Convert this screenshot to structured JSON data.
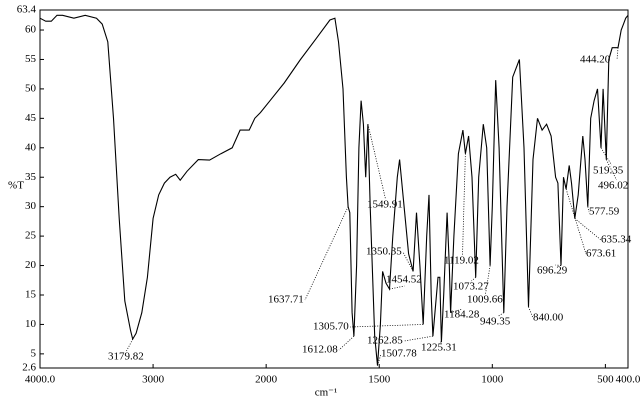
{
  "chart_data": {
    "type": "line",
    "color": "#000000",
    "ylabel": "%T",
    "xlabel": "cm⁻¹",
    "xlim": [
      4000,
      400
    ],
    "ylim": [
      2.6,
      63.4
    ],
    "x_scale": {
      "type": "split",
      "break": 2000,
      "expansion": 2
    },
    "xticks": [
      {
        "value": 4000,
        "label": "4000.0"
      },
      3000,
      2000,
      1500,
      1000,
      500,
      {
        "value": 400,
        "label": "400.0"
      }
    ],
    "yticks": [
      2.6,
      5,
      10,
      15,
      20,
      25,
      30,
      35,
      40,
      45,
      50,
      55,
      60,
      63.4
    ],
    "x": [
      4000,
      3950,
      3900,
      3850,
      3800,
      3700,
      3600,
      3500,
      3450,
      3400,
      3350,
      3300,
      3250,
      3200,
      3180,
      3150,
      3100,
      3050,
      3000,
      2950,
      2900,
      2850,
      2800,
      2760,
      2700,
      2600,
      2500,
      2400,
      2300,
      2230,
      2150,
      2100,
      2050,
      1983,
      1920,
      1850,
      1780,
      1718,
      1696,
      1680,
      1660,
      1645,
      1637.71,
      1630,
      1620,
      1612.08,
      1600,
      1590,
      1580,
      1570,
      1560,
      1549.91,
      1540,
      1520,
      1507.78,
      1495,
      1485,
      1470,
      1454.52,
      1440,
      1420,
      1410,
      1390,
      1370,
      1350.35,
      1335,
      1320,
      1305.7,
      1290,
      1280,
      1270,
      1262.85,
      1240,
      1232,
      1225.31,
      1215,
      1200,
      1190,
      1184.28,
      1170,
      1150,
      1130,
      1119.02,
      1105,
      1090,
      1073.27,
      1060,
      1040,
      1025,
      1009.66,
      1000,
      985,
      970,
      949.35,
      935,
      910,
      880,
      860,
      840,
      820,
      800,
      780,
      760,
      740,
      720,
      710,
      696.29,
      685,
      673.61,
      660,
      650,
      635.34,
      620,
      600,
      590,
      577.59,
      565,
      550,
      535,
      519.35,
      510,
      496.02,
      485,
      470,
      444.2,
      430,
      420,
      410,
      400
    ],
    "values": [
      62,
      61.5,
      61.5,
      62.5,
      62.5,
      62,
      62.5,
      62,
      61,
      58,
      45,
      28,
      14,
      9,
      7.5,
      8.5,
      12,
      18,
      28,
      32,
      34,
      35,
      35.5,
      34.5,
      36,
      38,
      37.9,
      39,
      40,
      43,
      43,
      45,
      46,
      48,
      51,
      54.9,
      58.5,
      61.7,
      62,
      58,
      50,
      35,
      30,
      29,
      12,
      8,
      20,
      40,
      48,
      44,
      35,
      44,
      30,
      8,
      3,
      10,
      19,
      17,
      16,
      25,
      35,
      38,
      30,
      22,
      19,
      29,
      20,
      10,
      25,
      32,
      15,
      8,
      18,
      18,
      7,
      15,
      29,
      20,
      12,
      25,
      39,
      43,
      39,
      42,
      35,
      18,
      35,
      44,
      40,
      20,
      30,
      51.5,
      40,
      12,
      30,
      52,
      55,
      40,
      13,
      38,
      45,
      43,
      44,
      42,
      35,
      34,
      20,
      35,
      33,
      37,
      34,
      28,
      32,
      42,
      38,
      30,
      45,
      48,
      50,
      40,
      50,
      38,
      55,
      57,
      57,
      60,
      61,
      62,
      62.5
    ],
    "peaks": [
      {
        "value": 3179.82,
        "label": "3179.82"
      },
      {
        "value": 1637.71,
        "label": "1637.71"
      },
      {
        "value": 1612.08,
        "label": "1612.08"
      },
      {
        "value": 1549.91,
        "label": "1549.91"
      },
      {
        "value": 1507.78,
        "label": "1507.78"
      },
      {
        "value": 1454.52,
        "label": "1454.52"
      },
      {
        "value": 1350.35,
        "label": "1350.35"
      },
      {
        "value": 1305.7,
        "label": "1305.70"
      },
      {
        "value": 1262.85,
        "label": "1262.85"
      },
      {
        "value": 1225.31,
        "label": "1225.31"
      },
      {
        "value": 1184.28,
        "label": "1184.28"
      },
      {
        "value": 1119.02,
        "label": "1119.02"
      },
      {
        "value": 1073.27,
        "label": "1073.27"
      },
      {
        "value": 1009.66,
        "label": "1009.66"
      },
      {
        "value": 949.35,
        "label": "949.35"
      },
      {
        "value": 840,
        "label": "840.00"
      },
      {
        "value": 696.29,
        "label": "696.29"
      },
      {
        "value": 673.61,
        "label": "673.61"
      },
      {
        "value": 635.34,
        "label": "635.34"
      },
      {
        "value": 577.59,
        "label": "577.59"
      },
      {
        "value": 519.35,
        "label": "519.35"
      },
      {
        "value": 496.02,
        "label": "496.02"
      },
      {
        "value": 444.2,
        "label": "444.20"
      }
    ]
  }
}
